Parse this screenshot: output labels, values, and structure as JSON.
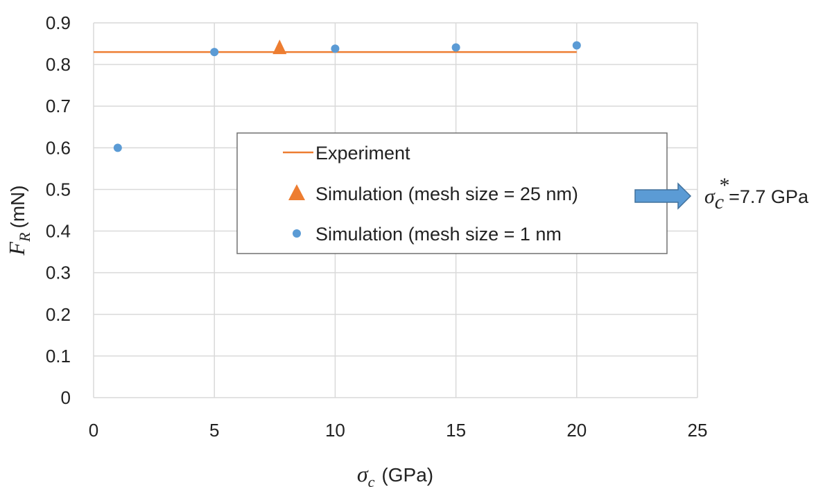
{
  "chart_data": {
    "type": "scatter",
    "xlabel": {
      "symbol": "σ",
      "subscript": "c",
      "unit": "(GPa)"
    },
    "ylabel": {
      "symbol": "F",
      "subscript": "R",
      "unit": "(mN)"
    },
    "xlim": [
      0,
      25
    ],
    "ylim": [
      0,
      0.9
    ],
    "xticks": [
      "0",
      "5",
      "10",
      "15",
      "20",
      "25"
    ],
    "yticks": [
      "0",
      "0.1",
      "0.2",
      "0.3",
      "0.4",
      "0.5",
      "0.6",
      "0.7",
      "0.8",
      "0.9"
    ],
    "grid": true,
    "series": [
      {
        "name": "Experiment",
        "kind": "line",
        "color": "#ED7D31",
        "x": [
          0,
          20
        ],
        "y": [
          0.83,
          0.83
        ]
      },
      {
        "name": "Simulation (mesh size = 25 nm)",
        "kind": "triangle",
        "color": "#ED7D31",
        "x": [
          7.7
        ],
        "y": [
          0.84
        ]
      },
      {
        "name": "Simulation (mesh size = 1 nm",
        "kind": "circle",
        "color": "#5B9BD5",
        "x": [
          1,
          5,
          10,
          15,
          20
        ],
        "y": [
          0.6,
          0.83,
          0.838,
          0.841,
          0.846
        ]
      }
    ],
    "legend_position": "center",
    "annotation": {
      "symbol": "σ",
      "subscript": "c",
      "superscript": "*",
      "text": "=7.7 GPa",
      "arrow_color": "#5B9BD5"
    }
  }
}
